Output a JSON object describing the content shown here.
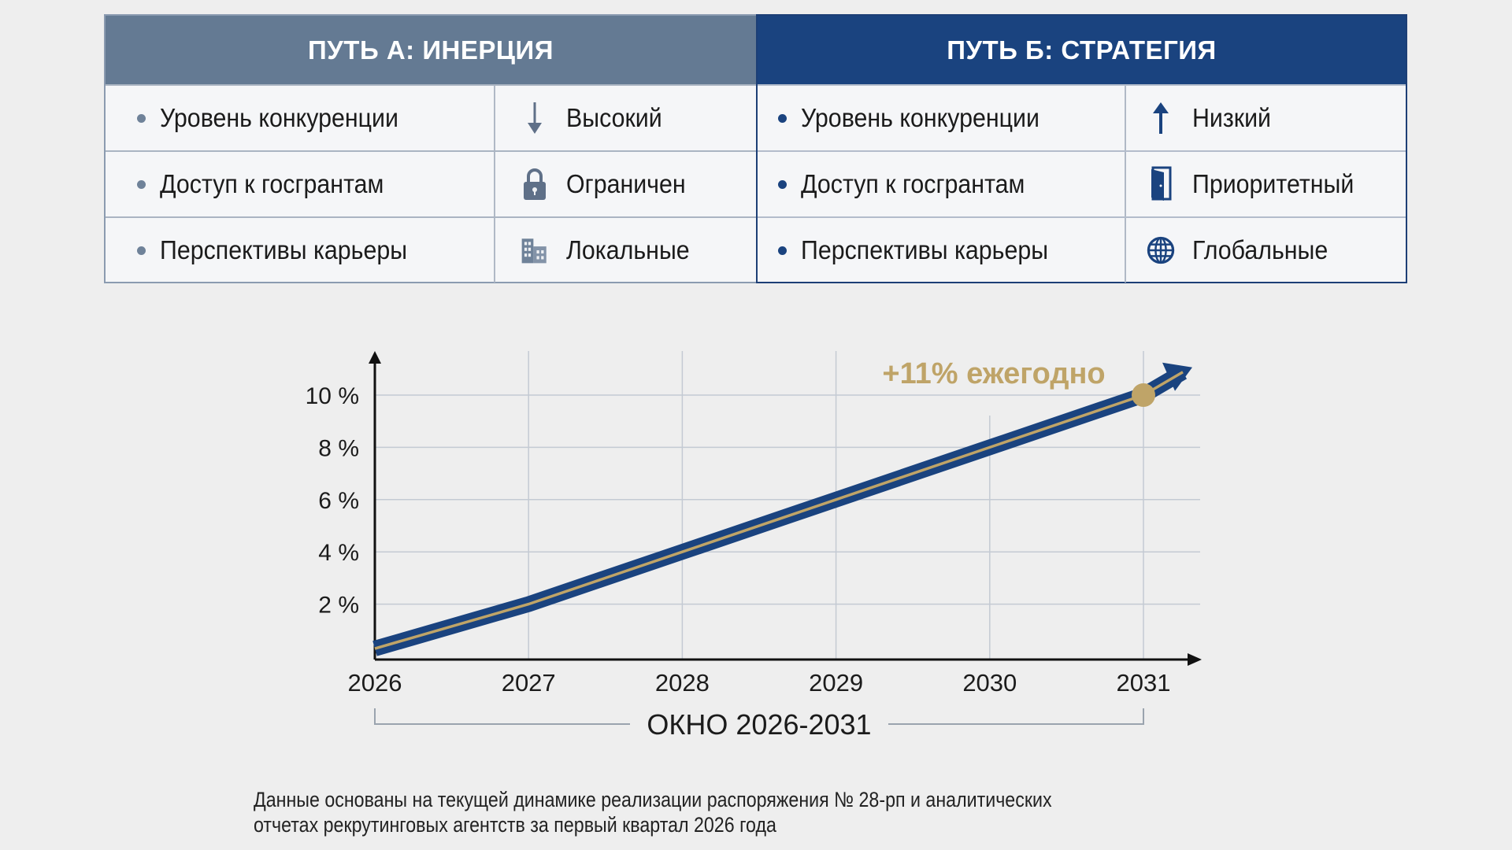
{
  "table": {
    "path_a": {
      "title": "ПУТЬ А: ИНЕРЦИЯ",
      "color": "#647a93",
      "rows": [
        {
          "label": "Уровень конкуренции",
          "value": "Высокий",
          "icon": "arrow-down-icon"
        },
        {
          "label": "Доступ к госгрантам",
          "value": "Ограничен",
          "icon": "lock-icon"
        },
        {
          "label": "Перспективы карьеры",
          "value": "Локальные",
          "icon": "building-icon"
        }
      ]
    },
    "path_b": {
      "title": "ПУТЬ Б: СТРАТЕГИЯ",
      "color": "#1a437f",
      "rows": [
        {
          "label": "Уровень конкуренции",
          "value": "Низкий",
          "icon": "arrow-up-icon"
        },
        {
          "label": "Доступ к госгрантам",
          "value": "Приоритетный",
          "icon": "door-icon"
        },
        {
          "label": "Перспективы карьеры",
          "value": "Глобальные",
          "icon": "globe-icon"
        }
      ]
    }
  },
  "chart_data": {
    "type": "line",
    "x": [
      2026,
      2027,
      2028,
      2029,
      2030,
      2031
    ],
    "values": [
      0.3,
      2,
      4,
      6,
      8,
      10
    ],
    "y_ticks": [
      "2 %",
      "4 %",
      "6 %",
      "8 %",
      "10 %"
    ],
    "x_ticks": [
      "2026",
      "2027",
      "2028",
      "2029",
      "2030",
      "2031"
    ],
    "ylim": [
      0,
      11
    ],
    "grid": true,
    "annotation": "+11% ежегодно",
    "range_label": "ОКНО 2026-2031",
    "line_color": "#1a437f",
    "accent_color": "#bfa468"
  },
  "footnote": {
    "line1": "Данные основаны на текущей динамике реализации распоряжения № 28-рп и аналитических",
    "line2": "отчетах рекрутинговых агентств за первый квартал 2026 года"
  }
}
